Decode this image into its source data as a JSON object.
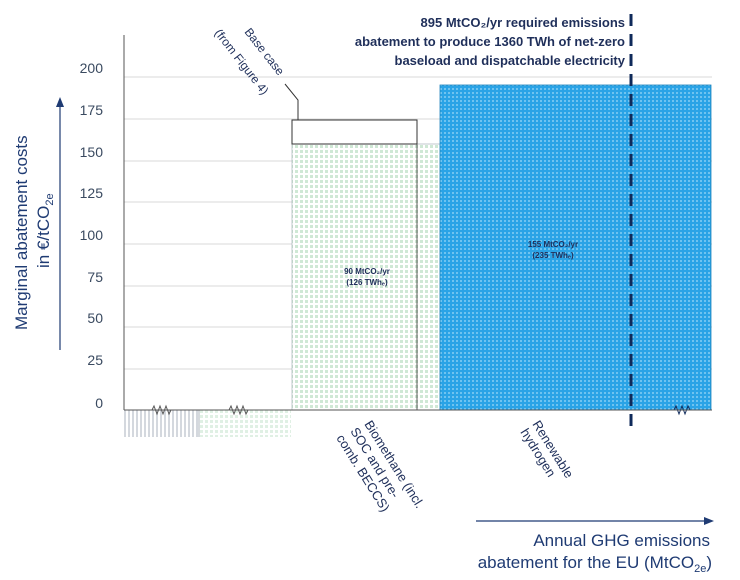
{
  "chart_data": {
    "type": "bar",
    "ylabel_line1": "Marginal abatement costs",
    "ylabel_line2": "in €/tCO",
    "ylabel_sub": "2e",
    "xlabel_line1": "Annual GHG emissions",
    "xlabel_line2": "abatement for the EU (MtCO",
    "xlabel_sub": "2e",
    "xlabel_end": ")",
    "yticks": [
      "200",
      "175",
      "150",
      "125",
      "100",
      "75",
      "50",
      "25",
      "0"
    ],
    "ylim": [
      0,
      210
    ],
    "xlim": [
      0,
      895
    ],
    "grid": true,
    "bars": [
      {
        "x0": 0,
        "x1": 170,
        "value": 160,
        "category": "Biomethane (incl. SOC and pre-comb. BECCS)"
      },
      {
        "x0": 170,
        "x1": 320,
        "value": 160,
        "category": ""
      },
      {
        "x0": 320,
        "x1": 770,
        "value": 195,
        "category": "Renewable hydrogen"
      },
      {
        "x0": 770,
        "x1": 895,
        "value": 195,
        "category": ""
      }
    ],
    "base_case": {
      "x0": 0,
      "x1": 170,
      "value": 175
    },
    "bar_labels": [
      {
        "line1": "90 MtCO₂/yr",
        "line2": "(126 TWhₑ)"
      },
      {
        "line1": "155 MtCO₂/yr",
        "line2": "(235 TWhₑ)"
      }
    ],
    "categories": [
      {
        "lines": [
          "Biomethane (incl.",
          "SOC and pre-",
          "comb. BECCS)"
        ]
      },
      {
        "lines": [
          "Renewable",
          "hydrogen"
        ]
      }
    ],
    "base_case_lines": [
      "Base case",
      "(from Figure 4)"
    ],
    "annotation_lines": [
      "895 MtCO₂/yr required emissions",
      "abatement to produce 1360 TWh of net-zero",
      "baseload and dispatchable electricity"
    ],
    "requirement_marker": 895,
    "colors": {
      "axis_text": "#1f3b73",
      "biomethane": "#d6eddc",
      "hydrogen": "#2aa3e6",
      "marker": "#0f2a5a"
    }
  }
}
